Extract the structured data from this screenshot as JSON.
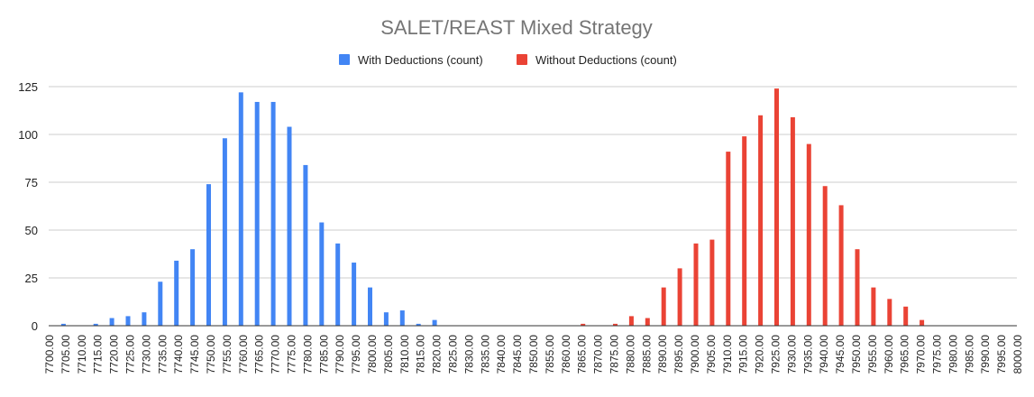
{
  "chart_data": {
    "type": "bar",
    "title": "SALET/REAST Mixed Strategy",
    "xlabel": "",
    "ylabel": "",
    "ylim": [
      0,
      125
    ],
    "yticks": [
      0,
      25,
      50,
      75,
      100,
      125
    ],
    "grid": true,
    "legend_position": "top",
    "categories": [
      "7700.00",
      "7705.00",
      "7710.00",
      "7715.00",
      "7720.00",
      "7725.00",
      "7730.00",
      "7735.00",
      "7740.00",
      "7745.00",
      "7750.00",
      "7755.00",
      "7760.00",
      "7765.00",
      "7770.00",
      "7775.00",
      "7780.00",
      "7785.00",
      "7790.00",
      "7795.00",
      "7800.00",
      "7805.00",
      "7810.00",
      "7815.00",
      "7820.00",
      "7825.00",
      "7830.00",
      "7835.00",
      "7840.00",
      "7845.00",
      "7850.00",
      "7855.00",
      "7860.00",
      "7865.00",
      "7870.00",
      "7875.00",
      "7880.00",
      "7885.00",
      "7890.00",
      "7895.00",
      "7900.00",
      "7905.00",
      "7910.00",
      "7915.00",
      "7920.00",
      "7925.00",
      "7930.00",
      "7935.00",
      "7940.00",
      "7945.00",
      "7950.00",
      "7955.00",
      "7960.00",
      "7965.00",
      "7970.00",
      "7975.00",
      "7980.00",
      "7985.00",
      "7990.00",
      "7995.00",
      "8000.00"
    ],
    "series": [
      {
        "name": "With Deductions (count)",
        "color": "#4285f4",
        "values": [
          0,
          1,
          0,
          1,
          4,
          5,
          7,
          23,
          34,
          40,
          74,
          98,
          122,
          117,
          117,
          104,
          84,
          54,
          43,
          33,
          20,
          7,
          8,
          1,
          3,
          0,
          0,
          0,
          0,
          0,
          0,
          0,
          0,
          0,
          0,
          0,
          0,
          0,
          0,
          0,
          0,
          0,
          0,
          0,
          0,
          0,
          0,
          0,
          0,
          0,
          0,
          0,
          0,
          0,
          0,
          0,
          0,
          0,
          0,
          0,
          0
        ]
      },
      {
        "name": "Without Deductions (count)",
        "color": "#ea4335",
        "values": [
          0,
          0,
          0,
          0,
          0,
          0,
          0,
          0,
          0,
          0,
          0,
          0,
          0,
          0,
          0,
          0,
          0,
          0,
          0,
          0,
          0,
          0,
          0,
          0,
          0,
          0,
          0,
          0,
          0,
          0,
          0,
          0,
          0,
          1,
          0,
          1,
          5,
          4,
          20,
          30,
          43,
          45,
          91,
          99,
          110,
          124,
          109,
          95,
          73,
          63,
          40,
          20,
          14,
          10,
          3,
          0,
          0,
          0,
          0,
          0,
          0
        ]
      }
    ]
  }
}
